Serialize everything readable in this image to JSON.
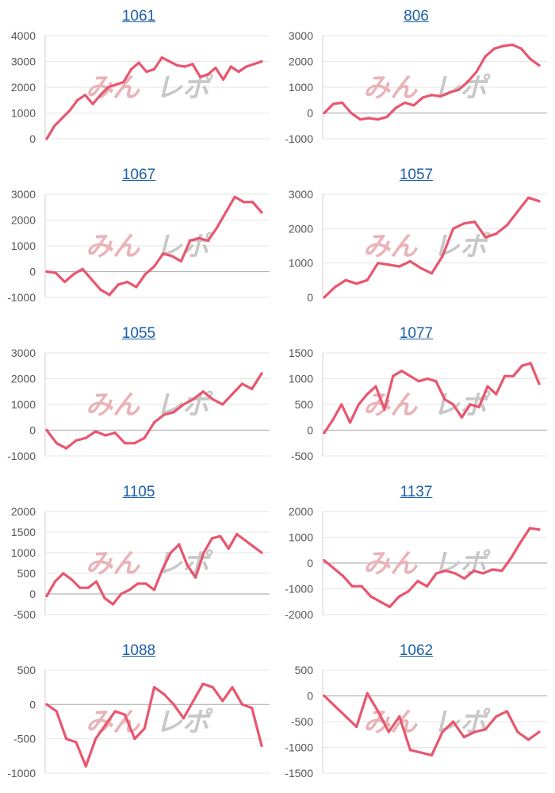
{
  "watermark": {
    "left": "みん",
    "right": "レポ",
    "left_color": "#e9b3b8",
    "right_color": "#c8c8c8"
  },
  "line_color": "#e8566e",
  "chart_data": [
    {
      "type": "line",
      "title": "1061",
      "yticks": [
        0,
        1000,
        2000,
        3000,
        4000
      ],
      "ylim": [
        0,
        4000
      ],
      "values": [
        0,
        500,
        800,
        1100,
        1500,
        1700,
        1350,
        1700,
        2000,
        2100,
        2200,
        2700,
        2950,
        2600,
        2700,
        3150,
        3000,
        2850,
        2800,
        2900,
        2400,
        2500,
        2750,
        2300,
        2800,
        2600,
        2800,
        2900,
        3000
      ]
    },
    {
      "type": "line",
      "title": "806",
      "yticks": [
        -1000,
        0,
        1000,
        2000,
        3000
      ],
      "ylim": [
        -1000,
        3000
      ],
      "values": [
        0,
        350,
        400,
        0,
        -250,
        -200,
        -250,
        -150,
        200,
        400,
        300,
        600,
        700,
        650,
        800,
        900,
        1200,
        1600,
        2200,
        2500,
        2600,
        2650,
        2500,
        2100,
        1850
      ]
    },
    {
      "type": "line",
      "title": "1067",
      "yticks": [
        -1000,
        0,
        1000,
        2000,
        3000
      ],
      "ylim": [
        -1000,
        3000
      ],
      "values": [
        0,
        -50,
        -400,
        -100,
        100,
        -300,
        -700,
        -900,
        -500,
        -400,
        -600,
        -100,
        200,
        700,
        600,
        400,
        1200,
        1300,
        1200,
        1700,
        2300,
        2900,
        2700,
        2700,
        2300
      ]
    },
    {
      "type": "line",
      "title": "1057",
      "yticks": [
        0,
        1000,
        2000,
        3000
      ],
      "ylim": [
        0,
        3000
      ],
      "values": [
        0,
        300,
        500,
        400,
        500,
        1000,
        950,
        900,
        1050,
        850,
        700,
        1200,
        2000,
        2150,
        2200,
        1750,
        1850,
        2100,
        2500,
        2900,
        2800
      ]
    },
    {
      "type": "line",
      "title": "1055",
      "yticks": [
        -1000,
        0,
        1000,
        2000,
        3000
      ],
      "ylim": [
        -1000,
        3000
      ],
      "values": [
        0,
        -500,
        -700,
        -400,
        -300,
        -50,
        -200,
        -100,
        -500,
        -500,
        -300,
        300,
        600,
        700,
        1000,
        1200,
        1500,
        1200,
        1000,
        1400,
        1800,
        1600,
        2200
      ]
    },
    {
      "type": "line",
      "title": "1077",
      "yticks": [
        -500,
        0,
        500,
        1000,
        1500
      ],
      "ylim": [
        -500,
        1500
      ],
      "values": [
        -50,
        200,
        500,
        150,
        500,
        700,
        850,
        400,
        1050,
        1150,
        1050,
        950,
        1000,
        950,
        600,
        500,
        250,
        500,
        450,
        850,
        700,
        1050,
        1050,
        1250,
        1300,
        900
      ]
    },
    {
      "type": "line",
      "title": "1105",
      "yticks": [
        -500,
        0,
        500,
        1000,
        1500,
        2000
      ],
      "ylim": [
        -500,
        2000
      ],
      "values": [
        -50,
        300,
        500,
        350,
        150,
        150,
        300,
        -100,
        -250,
        0,
        100,
        250,
        250,
        100,
        600,
        1000,
        1200,
        700,
        400,
        1000,
        1350,
        1400,
        1100,
        1450,
        1300,
        1150,
        1000
      ]
    },
    {
      "type": "line",
      "title": "1137",
      "yticks": [
        -2000,
        -1000,
        0,
        1000,
        2000
      ],
      "ylim": [
        -2000,
        2000
      ],
      "values": [
        100,
        -200,
        -500,
        -900,
        -900,
        -1300,
        -1500,
        -1700,
        -1300,
        -1100,
        -700,
        -900,
        -400,
        -300,
        -400,
        -600,
        -300,
        -400,
        -250,
        -300,
        200,
        800,
        1350,
        1300
      ]
    },
    {
      "type": "line",
      "title": "1088",
      "yticks": [
        -1000,
        -500,
        0,
        500
      ],
      "ylim": [
        -1000,
        500
      ],
      "values": [
        0,
        -100,
        -500,
        -550,
        -900,
        -500,
        -300,
        -100,
        -150,
        -500,
        -350,
        250,
        150,
        0,
        -200,
        50,
        300,
        250,
        50,
        250,
        0,
        -50,
        -600
      ]
    },
    {
      "type": "line",
      "title": "1062",
      "yticks": [
        -1500,
        -1000,
        -500,
        0,
        500
      ],
      "ylim": [
        -1500,
        500
      ],
      "values": [
        0,
        -200,
        -400,
        -600,
        50,
        -300,
        -700,
        -400,
        -1050,
        -1100,
        -1150,
        -700,
        -500,
        -800,
        -700,
        -650,
        -400,
        -300,
        -700,
        -850,
        -700
      ]
    }
  ]
}
